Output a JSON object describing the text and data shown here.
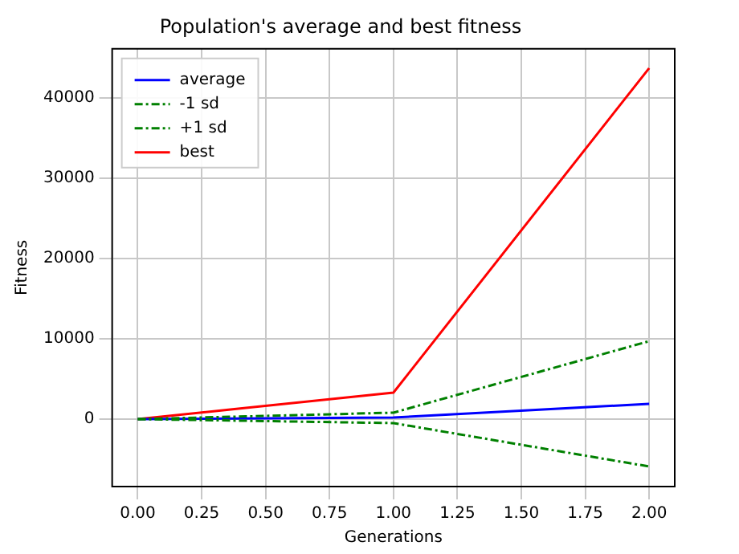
{
  "chart_data": {
    "type": "line",
    "title": "Population's average and best fitness",
    "xlabel": "Generations",
    "ylabel": "Fitness",
    "x": [
      0,
      1,
      2
    ],
    "series": [
      {
        "name": "average",
        "color": "#0000ff",
        "values": [
          0,
          200,
          1900
        ],
        "line_style": "solid"
      },
      {
        "name": "-1 sd",
        "color": "#008000",
        "values": [
          0,
          -500,
          -5900
        ],
        "line_style": "dashed"
      },
      {
        "name": "+1 sd",
        "color": "#008000",
        "values": [
          0,
          800,
          9700
        ],
        "line_style": "dashed"
      },
      {
        "name": "best",
        "color": "#ff0000",
        "values": [
          0,
          3300,
          43700
        ],
        "line_style": "solid"
      }
    ],
    "xlim": [
      -0.1,
      2.1
    ],
    "ylim": [
      -8400,
      46100
    ],
    "xticks": [
      {
        "value": 0,
        "label": "0.00"
      },
      {
        "value": 0.25,
        "label": "0.25"
      },
      {
        "value": 0.5,
        "label": "0.50"
      },
      {
        "value": 0.75,
        "label": "0.75"
      },
      {
        "value": 1,
        "label": "1.00"
      },
      {
        "value": 1.25,
        "label": "1.25"
      },
      {
        "value": 1.5,
        "label": "1.50"
      },
      {
        "value": 1.75,
        "label": "1.75"
      },
      {
        "value": 2,
        "label": "2.00"
      }
    ],
    "yticks": [
      0,
      10000,
      20000,
      30000,
      40000
    ],
    "grid": true,
    "legend": "top left",
    "marker": "none"
  }
}
